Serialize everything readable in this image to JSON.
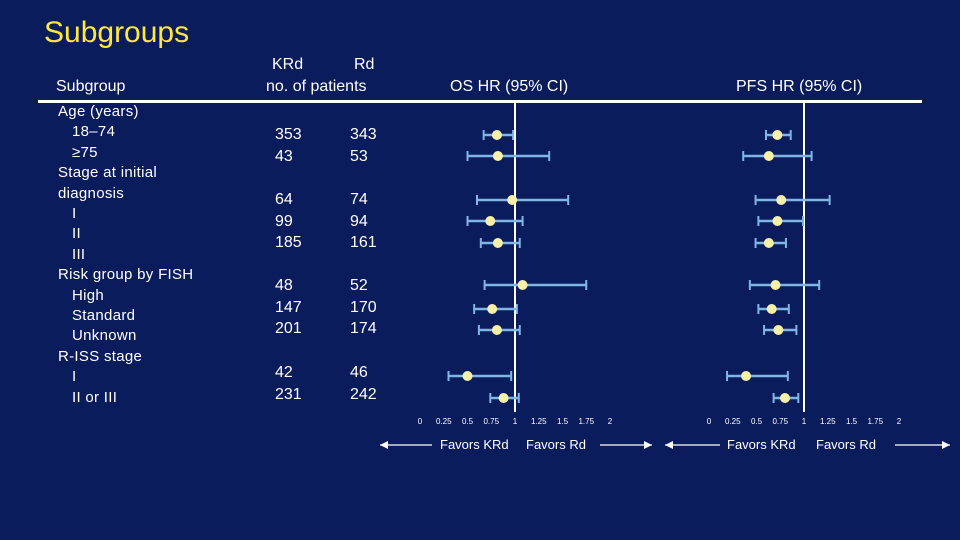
{
  "title": "Subgroups",
  "headers": {
    "subgroup": "Subgroup",
    "krd": "KRd",
    "rd": "Rd",
    "patients": "no. of patients",
    "os": "OS HR (95% CI)",
    "pfs": "PFS HR (95% CI)"
  },
  "subgroup_labels": [
    "Age (years)",
    "  18–74",
    "  ≥75",
    "Stage at initial",
    "diagnosis",
    "  I",
    "  II",
    "  III",
    "Risk group by FISH",
    "  High",
    "  Standard",
    "  Unknown",
    "R-ISS stage",
    "  I",
    "  II or III"
  ],
  "patients": {
    "age": {
      "krd": [
        "353",
        "43"
      ],
      "rd": [
        "343",
        "53"
      ]
    },
    "stage": {
      "krd": [
        "64",
        "99",
        "185"
      ],
      "rd": [
        "74",
        "94",
        "161"
      ]
    },
    "risk": {
      "krd": [
        "48",
        "147",
        "201"
      ],
      "rd": [
        "52",
        "170",
        "174"
      ]
    },
    "riss": {
      "krd": [
        "42",
        "231"
      ],
      "rd": [
        "46",
        "242"
      ]
    }
  },
  "chart_data": [
    {
      "type": "forest",
      "title": "OS HR (95% CI)",
      "xlim": [
        0,
        2
      ],
      "reference": 1,
      "ticks": [
        "0",
        "0.25",
        "0.5",
        "0.75",
        "1",
        "1.25",
        "1.5",
        "1.75",
        "2"
      ],
      "favors": [
        "Favors KRd",
        "Favors Rd"
      ],
      "rows": [
        {
          "subgroup": "18–74",
          "hr": 0.81,
          "lo": 0.67,
          "hi": 0.98
        },
        {
          "subgroup": "≥75",
          "hr": 0.82,
          "lo": 0.5,
          "hi": 1.36
        },
        {
          "subgroup": "Stage I",
          "hr": 0.97,
          "lo": 0.6,
          "hi": 1.56
        },
        {
          "subgroup": "Stage II",
          "hr": 0.74,
          "lo": 0.5,
          "hi": 1.08
        },
        {
          "subgroup": "Stage III",
          "hr": 0.82,
          "lo": 0.64,
          "hi": 1.05
        },
        {
          "subgroup": "High risk",
          "hr": 1.08,
          "lo": 0.68,
          "hi": 1.75
        },
        {
          "subgroup": "Standard risk",
          "hr": 0.76,
          "lo": 0.57,
          "hi": 1.02
        },
        {
          "subgroup": "Unknown risk",
          "hr": 0.81,
          "lo": 0.62,
          "hi": 1.05
        },
        {
          "subgroup": "R-ISS I",
          "hr": 0.5,
          "lo": 0.3,
          "hi": 0.96
        },
        {
          "subgroup": "R-ISS II or III",
          "hr": 0.88,
          "lo": 0.74,
          "hi": 1.04
        }
      ]
    },
    {
      "type": "forest",
      "title": "PFS HR (95% CI)",
      "xlim": [
        0,
        2
      ],
      "reference": 1,
      "ticks": [
        "0",
        "0.25",
        "0.5",
        "0.75",
        "1",
        "1.25",
        "1.5",
        "1.75",
        "2"
      ],
      "favors": [
        "Favors KRd",
        "Favors Rd"
      ],
      "rows": [
        {
          "subgroup": "18–74",
          "hr": 0.72,
          "lo": 0.6,
          "hi": 0.86
        },
        {
          "subgroup": "≥75",
          "hr": 0.63,
          "lo": 0.36,
          "hi": 1.08
        },
        {
          "subgroup": "Stage I",
          "hr": 0.76,
          "lo": 0.49,
          "hi": 1.27
        },
        {
          "subgroup": "Stage II",
          "hr": 0.72,
          "lo": 0.52,
          "hi": 0.99
        },
        {
          "subgroup": "Stage III",
          "hr": 0.63,
          "lo": 0.49,
          "hi": 0.81
        },
        {
          "subgroup": "High risk",
          "hr": 0.7,
          "lo": 0.43,
          "hi": 1.16
        },
        {
          "subgroup": "Standard risk",
          "hr": 0.66,
          "lo": 0.52,
          "hi": 0.84
        },
        {
          "subgroup": "Unknown risk",
          "hr": 0.73,
          "lo": 0.58,
          "hi": 0.92
        },
        {
          "subgroup": "R-ISS I",
          "hr": 0.39,
          "lo": 0.19,
          "hi": 0.83
        },
        {
          "subgroup": "R-ISS II or III",
          "hr": 0.8,
          "lo": 0.68,
          "hi": 0.94
        }
      ]
    }
  ],
  "colors": {
    "background": "#0b1c5c",
    "title": "#ffe83c",
    "ci_line": "#7fb6e6",
    "point": "#f6f0a8",
    "text": "#ffffff"
  }
}
